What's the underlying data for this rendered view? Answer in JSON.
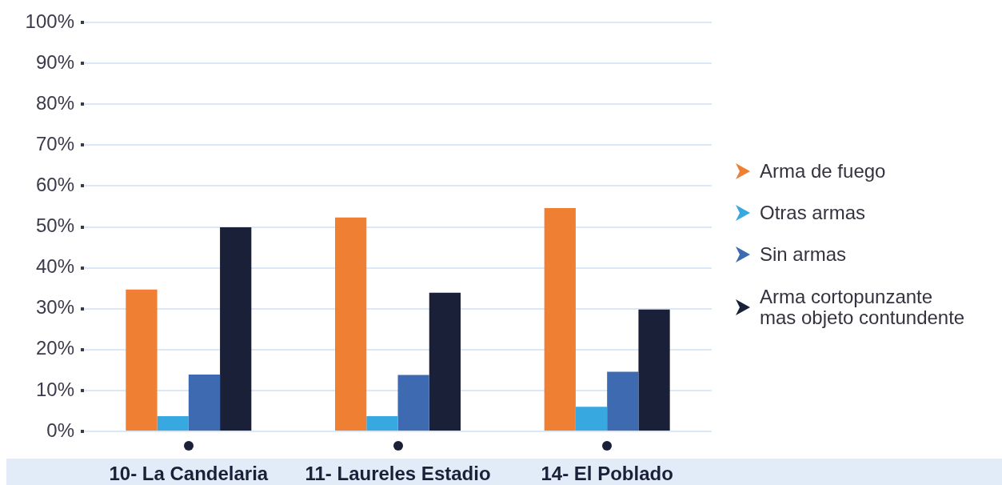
{
  "chart_data": {
    "type": "bar",
    "categories": [
      "10- La Candelaria",
      "11- Laureles Estadio",
      "14- El Poblado"
    ],
    "series": [
      {
        "name": "Arma de fuego",
        "color": "#ee7f33",
        "values": [
          34.7,
          52.3,
          54.6
        ]
      },
      {
        "name": "Otras armas",
        "color": "#38a9e0",
        "values": [
          3.7,
          3.7,
          6.0
        ]
      },
      {
        "name": "Sin armas",
        "color": "#3d6ab0",
        "values": [
          13.9,
          13.8,
          14.6
        ]
      },
      {
        "name": "Arma cortopunzante mas objeto contundente",
        "color": "#1b2039",
        "values": [
          49.9,
          33.9,
          29.8
        ]
      }
    ],
    "ylim": [
      0,
      100
    ],
    "yticks": [
      {
        "value": 0,
        "label": "0%"
      },
      {
        "value": 10,
        "label": "10%"
      },
      {
        "value": 20,
        "label": "20%"
      },
      {
        "value": 30,
        "label": "30%"
      },
      {
        "value": 40,
        "label": "40%"
      },
      {
        "value": 50,
        "label": "50%"
      },
      {
        "value": 60,
        "label": "60%"
      },
      {
        "value": 70,
        "label": "70%"
      },
      {
        "value": 80,
        "label": "80%"
      },
      {
        "value": 90,
        "label": "90%"
      },
      {
        "value": 100,
        "label": "100%"
      }
    ],
    "grid": "y",
    "legend": "right"
  }
}
